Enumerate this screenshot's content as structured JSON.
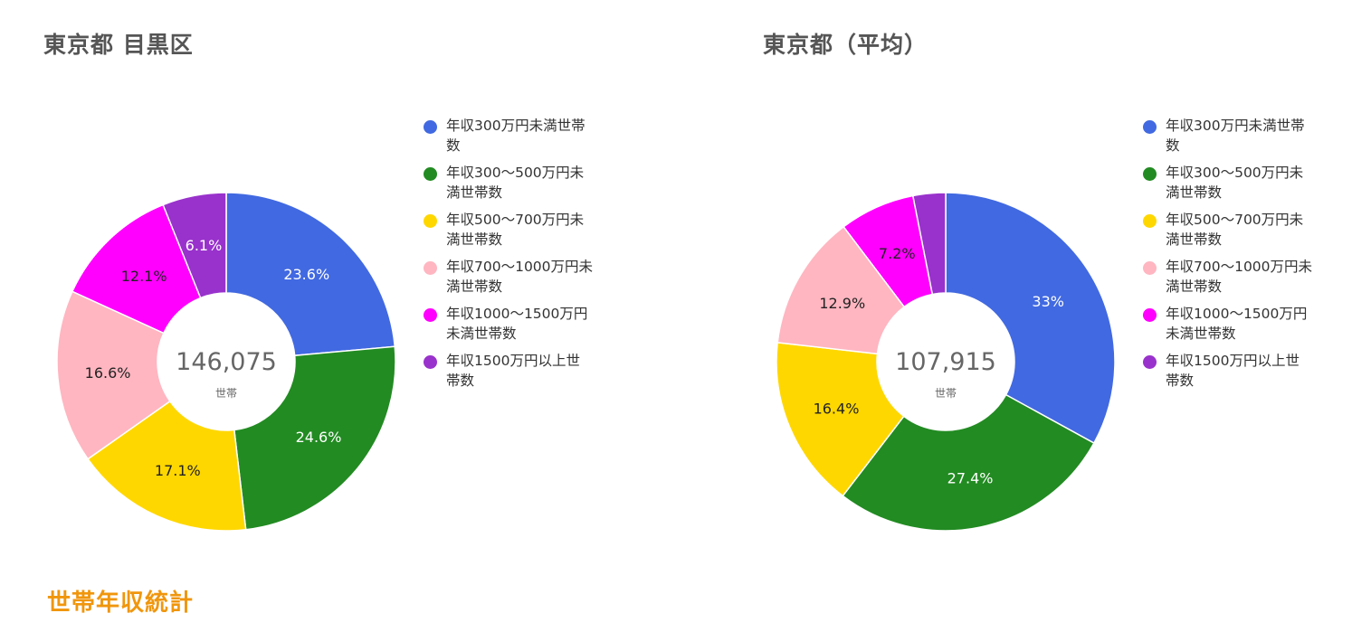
{
  "colors": [
    "#4169e1",
    "#228b22",
    "#ffd700",
    "#ffb6c1",
    "#ff00ff",
    "#9932cc"
  ],
  "section_title": "世帯年収統計",
  "chart_data": [
    {
      "type": "pie",
      "title": "東京都 目黒区",
      "center_value": "146,075",
      "center_unit": "世帯",
      "categories": [
        "年収300万円未満世帯数",
        "年収300～500万円未満世帯数",
        "年収500～700万円未満世帯数",
        "年収700～1000万円未満世帯数",
        "年収1000～1500万円未満世帯数",
        "年収1500万円以上世帯数"
      ],
      "values": [
        23.6,
        24.6,
        17.1,
        16.6,
        12.1,
        6.1
      ],
      "labels": [
        "23.6%",
        "24.6%",
        "17.1%",
        "16.6%",
        "12.1%",
        "6.1%"
      ],
      "legend_lines": [
        [
          "年収300万円未満世帯",
          "数"
        ],
        [
          "年収300～500万円未",
          "満世帯数"
        ],
        [
          "年収500～700万円未",
          "満世帯数"
        ],
        [
          "年収700～1000万円未",
          "満世帯数"
        ],
        [
          "年収1000～1500万円",
          "未満世帯数"
        ],
        [
          "年収1500万円以上世",
          "帯数"
        ]
      ],
      "legend_position": "right"
    },
    {
      "type": "pie",
      "title": "東京都（平均）",
      "center_value": "107,915",
      "center_unit": "世帯",
      "categories": [
        "年収300万円未満世帯数",
        "年収300～500万円未満世帯数",
        "年収500～700万円未満世帯数",
        "年収700～1000万円未満世帯数",
        "年収1000～1500万円未満世帯数",
        "年収1500万円以上世帯数"
      ],
      "values": [
        33.0,
        27.4,
        16.4,
        12.9,
        7.2,
        3.1
      ],
      "labels": [
        "33%",
        "27.4%",
        "16.4%",
        "12.9%",
        "7.2%",
        ""
      ],
      "legend_lines": [
        [
          "年収300万円未満世帯",
          "数"
        ],
        [
          "年収300～500万円未",
          "満世帯数"
        ],
        [
          "年収500～700万円未",
          "満世帯数"
        ],
        [
          "年収700～1000万円未",
          "満世帯数"
        ],
        [
          "年収1000～1500万円",
          "未満世帯数"
        ],
        [
          "年収1500万円以上世",
          "帯数"
        ]
      ],
      "legend_position": "right"
    }
  ]
}
